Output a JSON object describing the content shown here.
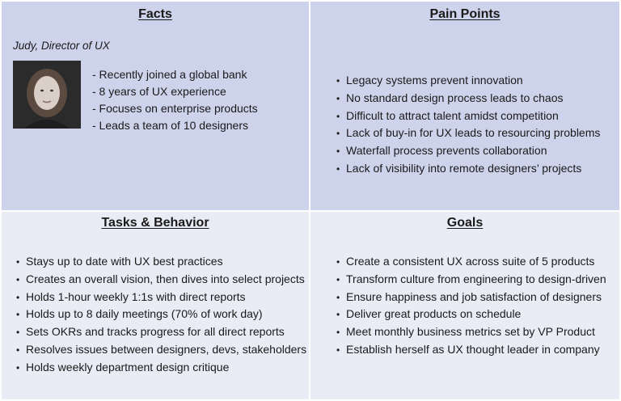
{
  "facts": {
    "title": "Facts",
    "persona": "Judy, Director of UX",
    "items": [
      "- Recently joined a global bank",
      "- 8 years of UX experience",
      "- Focuses on enterprise products",
      "- Leads a team of 10 designers"
    ]
  },
  "pain_points": {
    "title": "Pain Points",
    "items": [
      "Legacy systems prevent innovation",
      "No standard design process leads to chaos",
      "Difficult to attract talent amidst competition",
      "Lack of buy-in for UX leads to resourcing problems",
      "Waterfall process prevents collaboration",
      "Lack of visibility into remote designers’ projects"
    ]
  },
  "tasks": {
    "title": "Tasks & Behavior",
    "items": [
      "Stays up to date with UX best practices",
      "Creates an overall vision, then dives into select projects",
      "Holds 1-hour weekly 1:1s with direct reports",
      "Holds up to 8 daily meetings (70% of work day)",
      "Sets OKRs and tracks progress for all direct reports",
      "Resolves issues between designers, devs, stakeholders",
      "Holds weekly department design critique"
    ]
  },
  "goals": {
    "title": "Goals",
    "items": [
      "Create a consistent UX across suite of 5 products",
      "Transform culture from engineering to design-driven",
      "Ensure happiness and job satisfaction of designers",
      "Deliver great products on schedule",
      "Meet monthly business metrics set by VP Product",
      "Establish herself as UX thought leader in company"
    ]
  },
  "colors": {
    "top_panel": "#cdd3ea",
    "bottom_panel": "#e9ebf5"
  }
}
